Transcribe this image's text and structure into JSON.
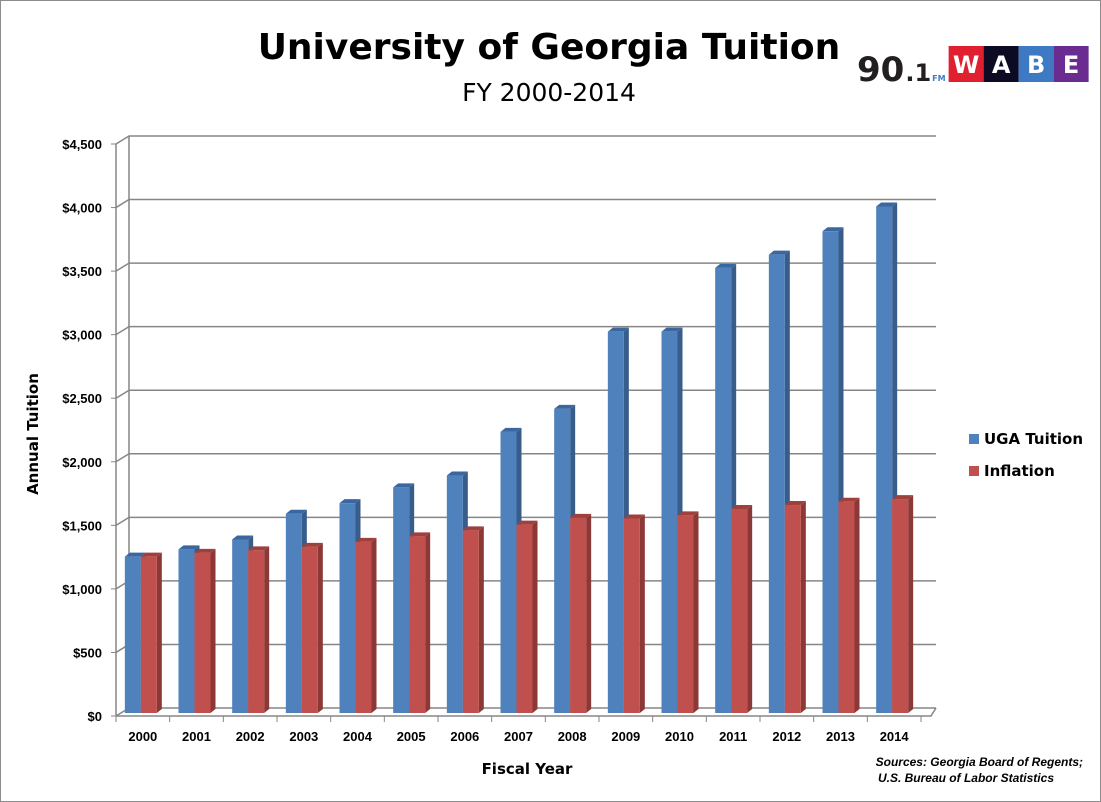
{
  "chart_data": {
    "type": "bar",
    "style": "3d-clustered-column",
    "title": "University of Georgia Tuition",
    "subtitle": "FY 2000-2014",
    "xlabel": "Fiscal Year",
    "ylabel": "Annual Tuition",
    "ylim": [
      0,
      4500
    ],
    "yticks": [
      "$0",
      "$500",
      "$1,000",
      "$1,500",
      "$2,000",
      "$2,500",
      "$3,000",
      "$3,500",
      "$4,000",
      "$4,500"
    ],
    "ytick_values": [
      0,
      500,
      1000,
      1500,
      2000,
      2500,
      3000,
      3500,
      4000,
      4500
    ],
    "grid": true,
    "legend_position": "right",
    "categories": [
      "2000",
      "2001",
      "2002",
      "2003",
      "2004",
      "2005",
      "2006",
      "2007",
      "2008",
      "2009",
      "2010",
      "2011",
      "2012",
      "2013",
      "2014"
    ],
    "series": [
      {
        "name": "UGA Tuition",
        "color": "#4f81bd",
        "values": [
          1230,
          1287,
          1365,
          1568,
          1651,
          1775,
          1868,
          2212,
          2393,
          3000,
          3000,
          3502,
          3606,
          3790,
          3985
        ]
      },
      {
        "name": "Inflation",
        "color": "#c0504d",
        "values": [
          1230,
          1260,
          1279,
          1307,
          1346,
          1390,
          1437,
          1482,
          1535,
          1530,
          1555,
          1605,
          1636,
          1662,
          1683
        ]
      }
    ]
  },
  "source_note": [
    "Sources: Georgia Board of Regents;",
    "U.S. Bureau of Labor Statistics"
  ],
  "logo": {
    "number": "90",
    "dot_one": ".1",
    "fm": "FM",
    "letters": [
      "W",
      "A",
      "B",
      "E"
    ],
    "colors": [
      "#e0202f",
      "#0d0a24",
      "#3e7ac4",
      "#6a2c91"
    ]
  }
}
